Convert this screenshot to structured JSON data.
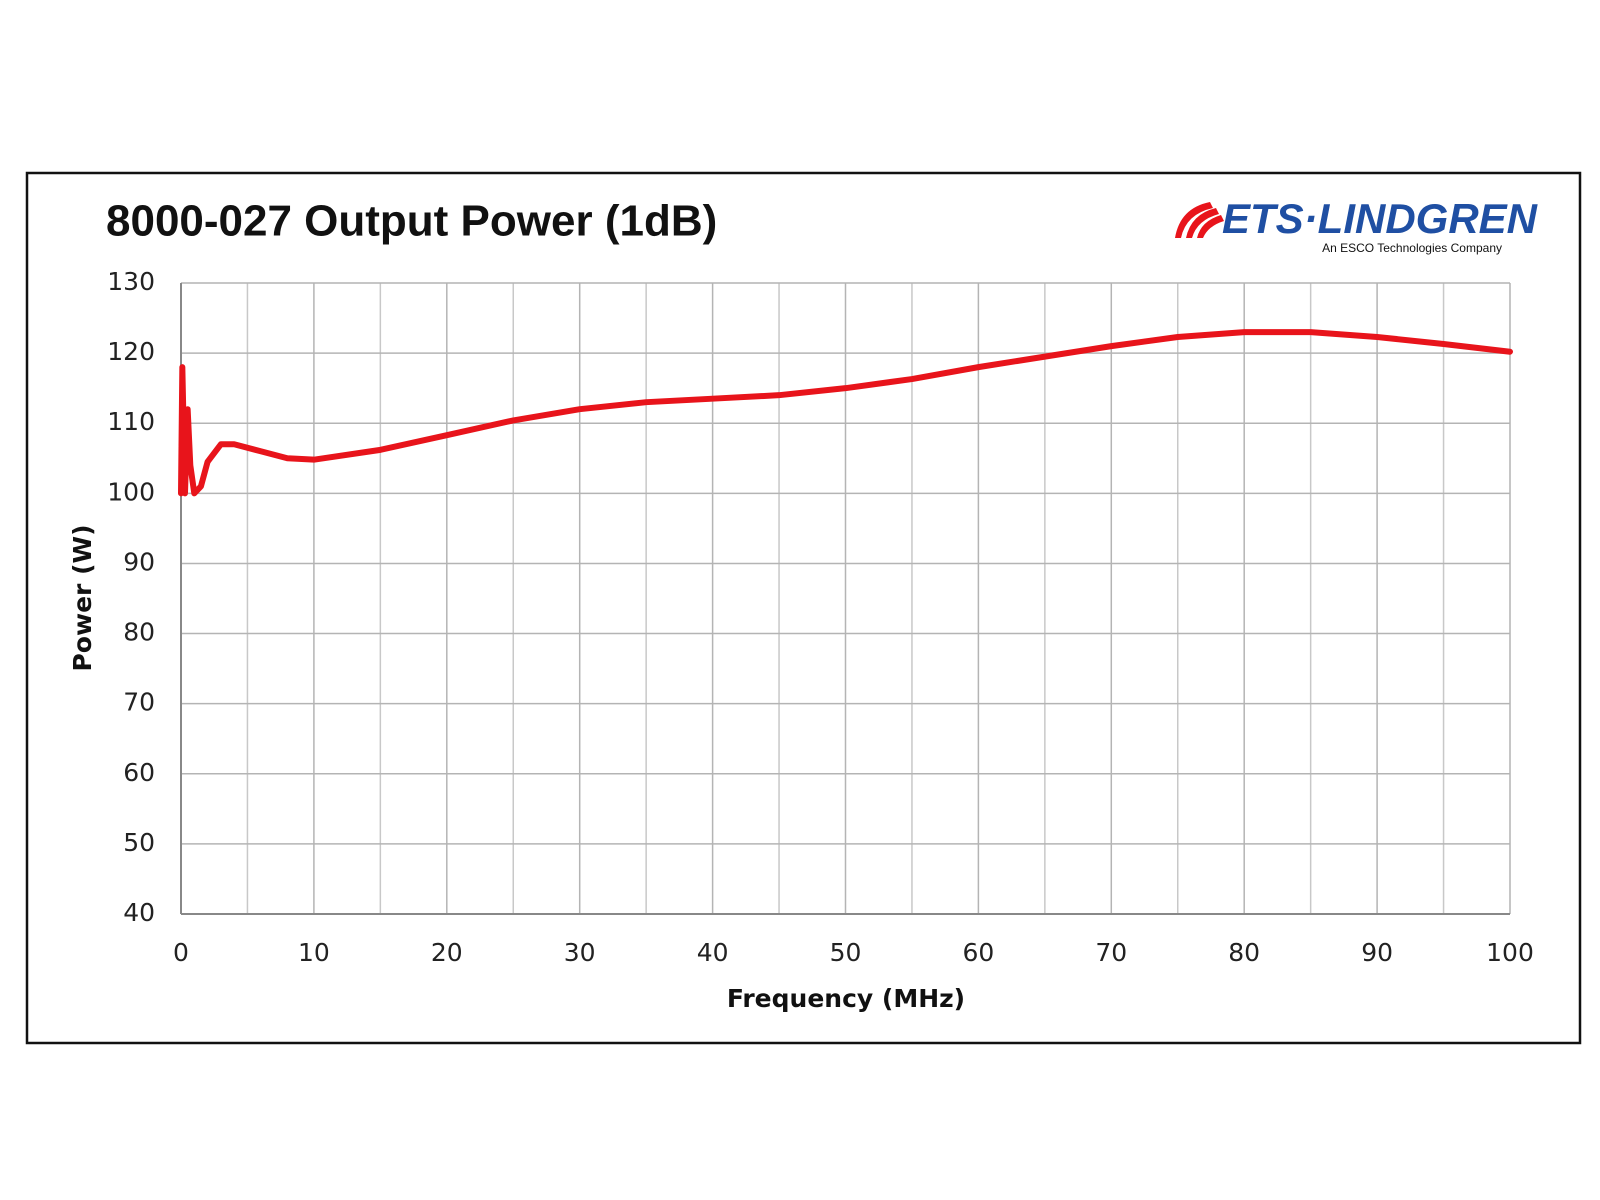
{
  "chart_data": {
    "type": "line",
    "title": "8000-027 Output Power (1dB)",
    "logo": {
      "name": "ETS·LINDGREN",
      "tagline": "An ESCO Technologies Company"
    },
    "x_label": "Frequency (MHz)",
    "y_label": "Power (W)",
    "x": [
      0,
      0.1,
      0.3,
      0.5,
      0.7,
      1,
      1.5,
      2,
      3,
      4,
      6,
      8,
      10,
      15,
      20,
      25,
      30,
      35,
      40,
      45,
      50,
      55,
      60,
      65,
      70,
      75,
      80,
      85,
      90,
      95,
      100
    ],
    "series": [
      {
        "name": "Output Power",
        "color": "#e8141b",
        "values": [
          100,
          118,
          100,
          112,
          104,
          100,
          101,
          104.5,
          107,
          107,
          106,
          105,
          104.8,
          106.2,
          108.3,
          110.4,
          112,
          113,
          113.5,
          114,
          115,
          116.3,
          118,
          119.5,
          121,
          122.3,
          123,
          123,
          122.3,
          121.3,
          120.2
        ]
      }
    ],
    "xlim": [
      0,
      100
    ],
    "xticks": [
      0,
      10,
      20,
      30,
      40,
      50,
      60,
      70,
      80,
      90,
      100
    ],
    "x_minor_ticks": [
      5,
      15,
      25,
      35,
      45,
      55,
      65,
      75,
      85,
      95
    ],
    "ylim": [
      40,
      130
    ],
    "yticks": [
      40,
      50,
      60,
      70,
      80,
      90,
      100,
      110,
      120,
      130
    ],
    "grid": true
  }
}
